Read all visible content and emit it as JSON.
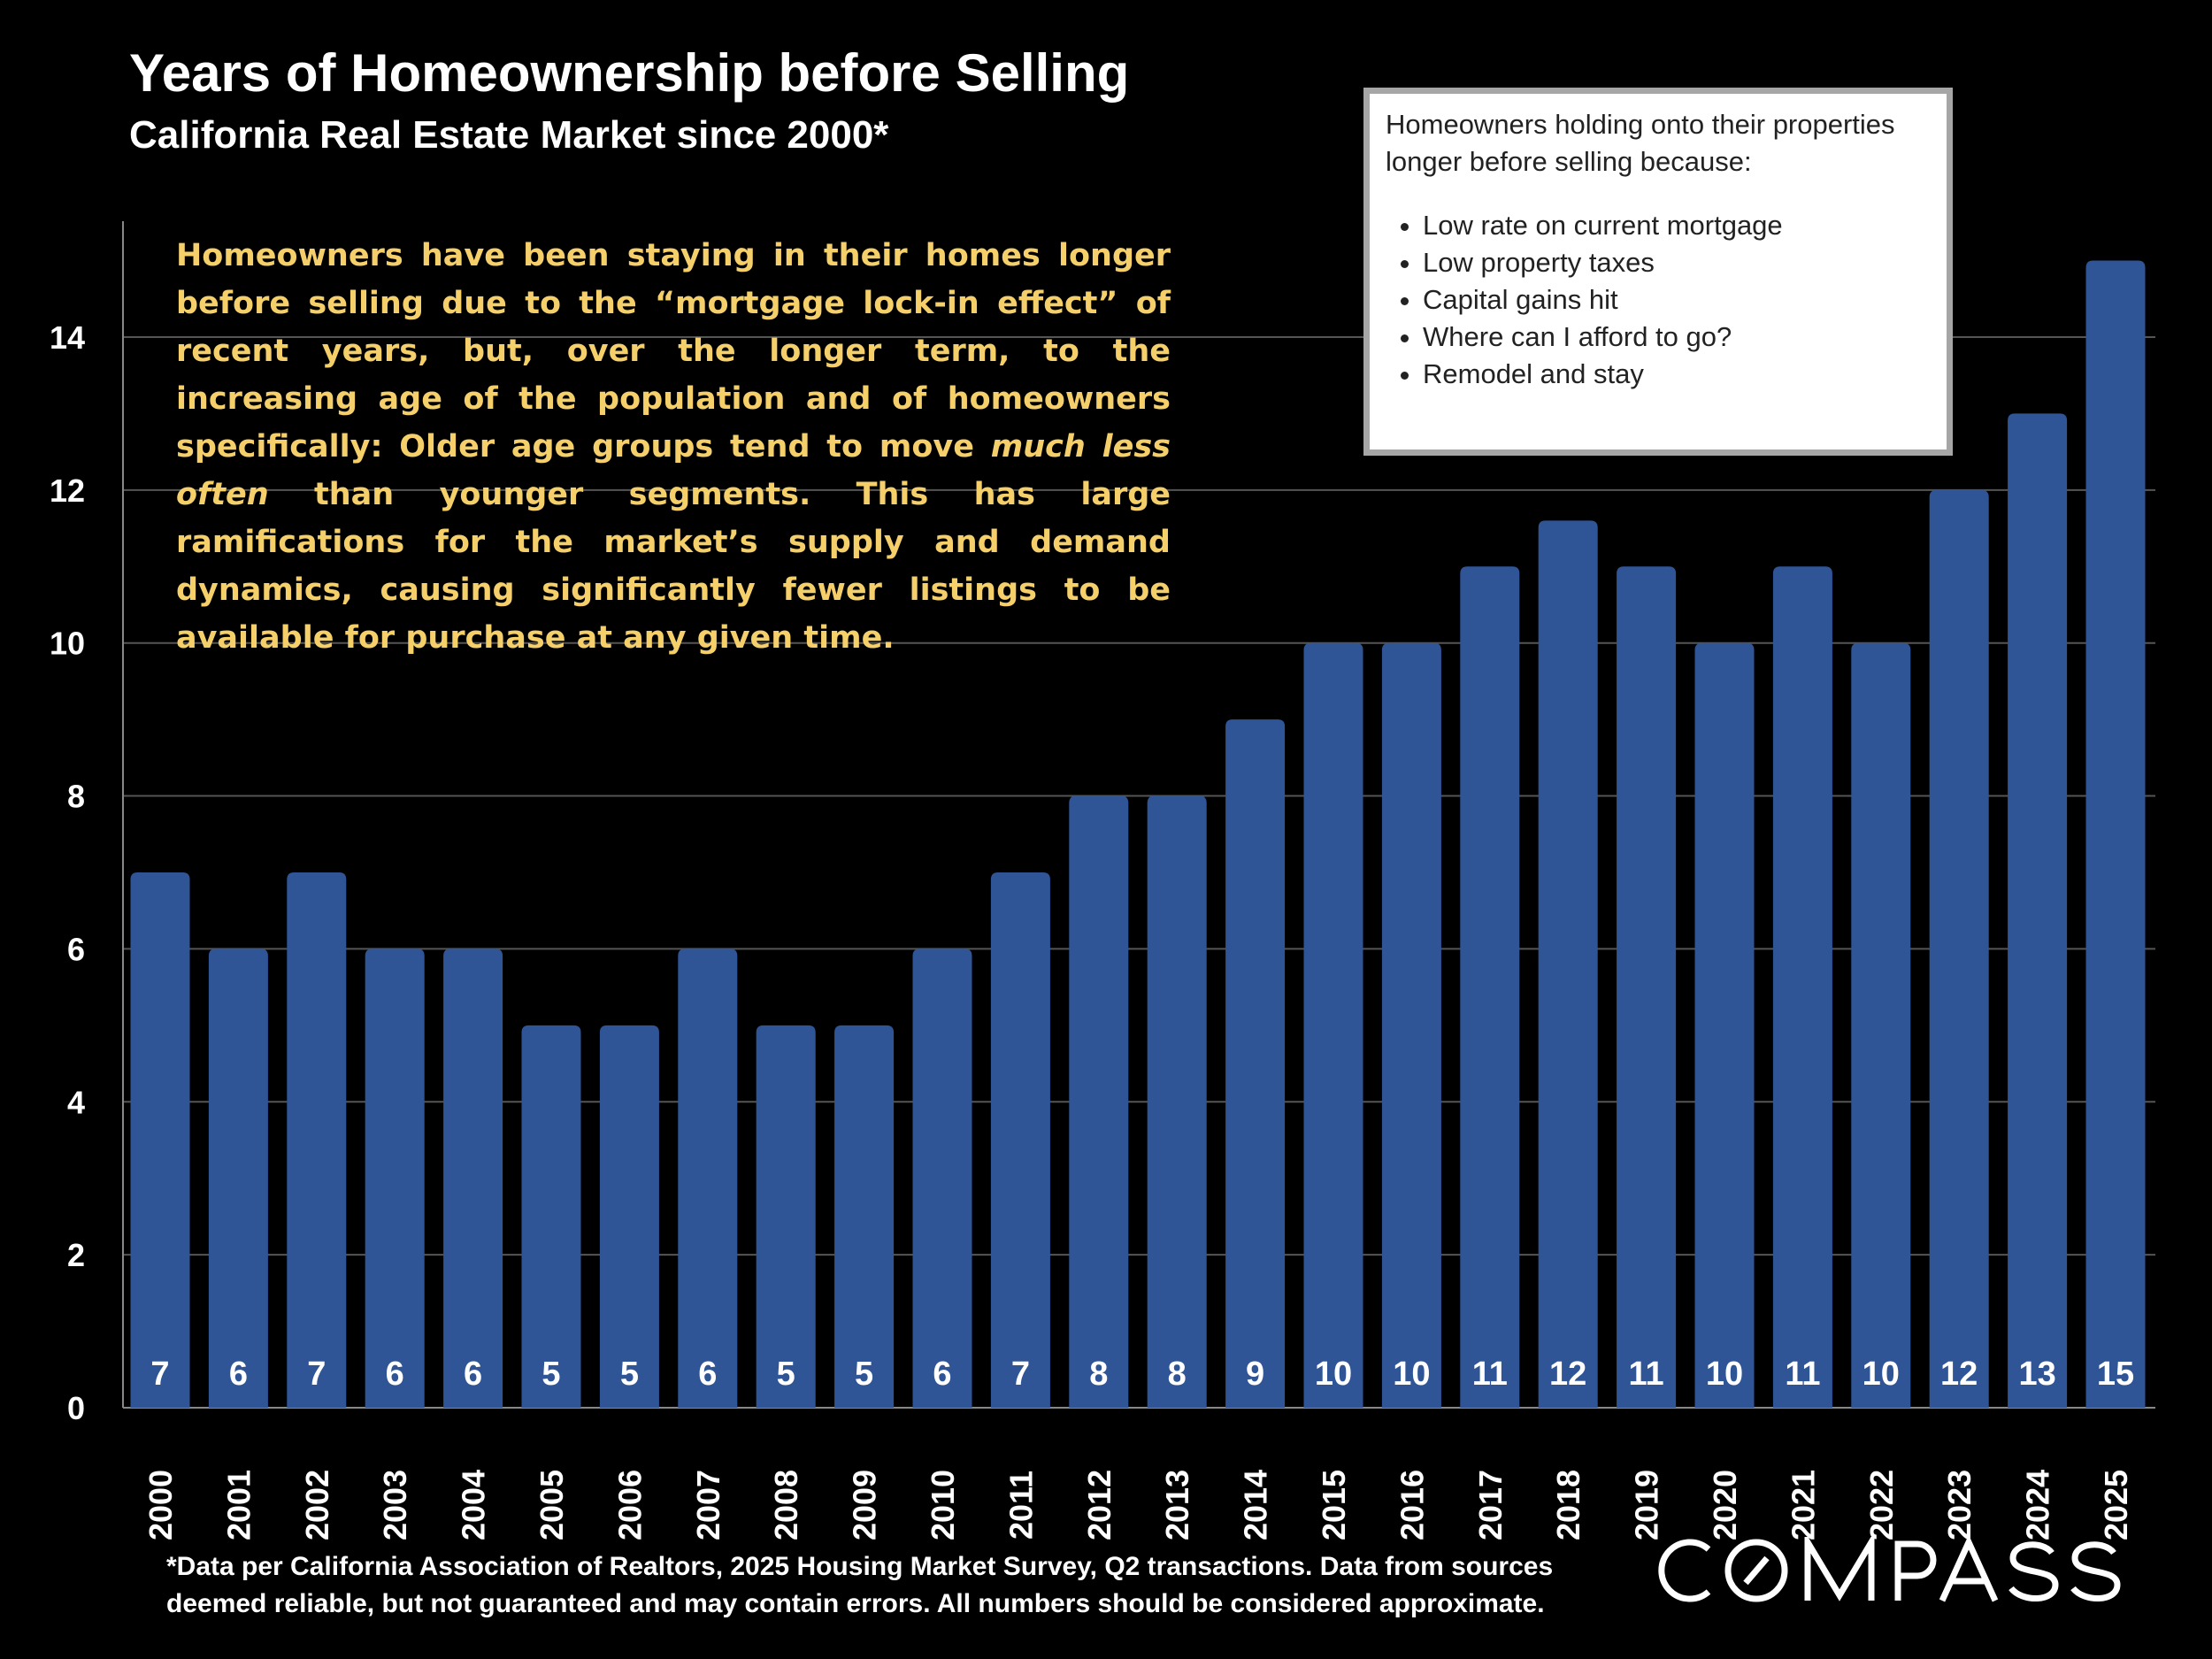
{
  "header": {
    "title": "Years of Homeownership before Selling",
    "subtitle": "California Real Estate Market since 2000*"
  },
  "note": {
    "before": "Homeowners have been staying in their homes longer before selling due to the “mortgage lock-in effect” of recent years, but, over the longer term, to the increasing age of the population and of homeowners specifically:  Older age groups tend to move ",
    "emphasis": "much less often",
    "after": " than younger segments. This has large ramifications for the market’s supply and demand dynamics, causing significantly fewer listings to be available for purchase at any given time."
  },
  "reasons": {
    "heading": "Homeowners holding onto their properties longer before selling because:",
    "items": [
      "Low rate on current mortgage",
      "Low property taxes",
      "Capital gains hit",
      "Where can I afford to go?",
      "Remodel and stay"
    ]
  },
  "footer": {
    "line1": "*Data per California Association of Realtors, 2025 Housing Market Survey, Q2 transactions. Data from sources",
    "line2": "deemed reliable, but not guaranteed and may contain errors. All numbers should be considered approximate."
  },
  "logo": {
    "text": "COMPASS"
  },
  "colors": {
    "bar": "#2f5597",
    "note_text": "#f5cf6a",
    "grid": "#555555"
  },
  "chart_data": {
    "type": "bar",
    "categories": [
      "2000",
      "2001",
      "2002",
      "2003",
      "2004",
      "2005",
      "2006",
      "2007",
      "2008",
      "2009",
      "2010",
      "2011",
      "2012",
      "2013",
      "2014",
      "2015",
      "2016",
      "2017",
      "2018",
      "2019",
      "2020",
      "2021",
      "2022",
      "2023",
      "2024",
      "2025"
    ],
    "values": [
      7,
      6,
      7,
      6,
      6,
      5,
      5,
      6,
      5,
      5,
      6,
      7,
      8,
      8,
      9,
      10,
      10,
      11,
      11.6,
      11,
      10,
      11,
      10,
      12,
      13,
      15
    ],
    "data_labels": [
      "7",
      "6",
      "7",
      "6",
      "6",
      "5",
      "5",
      "6",
      "5",
      "5",
      "6",
      "7",
      "8",
      "8",
      "9",
      "10",
      "10",
      "11",
      "12",
      "11",
      "10",
      "11",
      "10",
      "12",
      "13",
      "15"
    ],
    "ylim": [
      0,
      15.5
    ],
    "yticks": [
      0,
      2,
      4,
      6,
      8,
      10,
      12,
      14
    ],
    "grid": true
  }
}
